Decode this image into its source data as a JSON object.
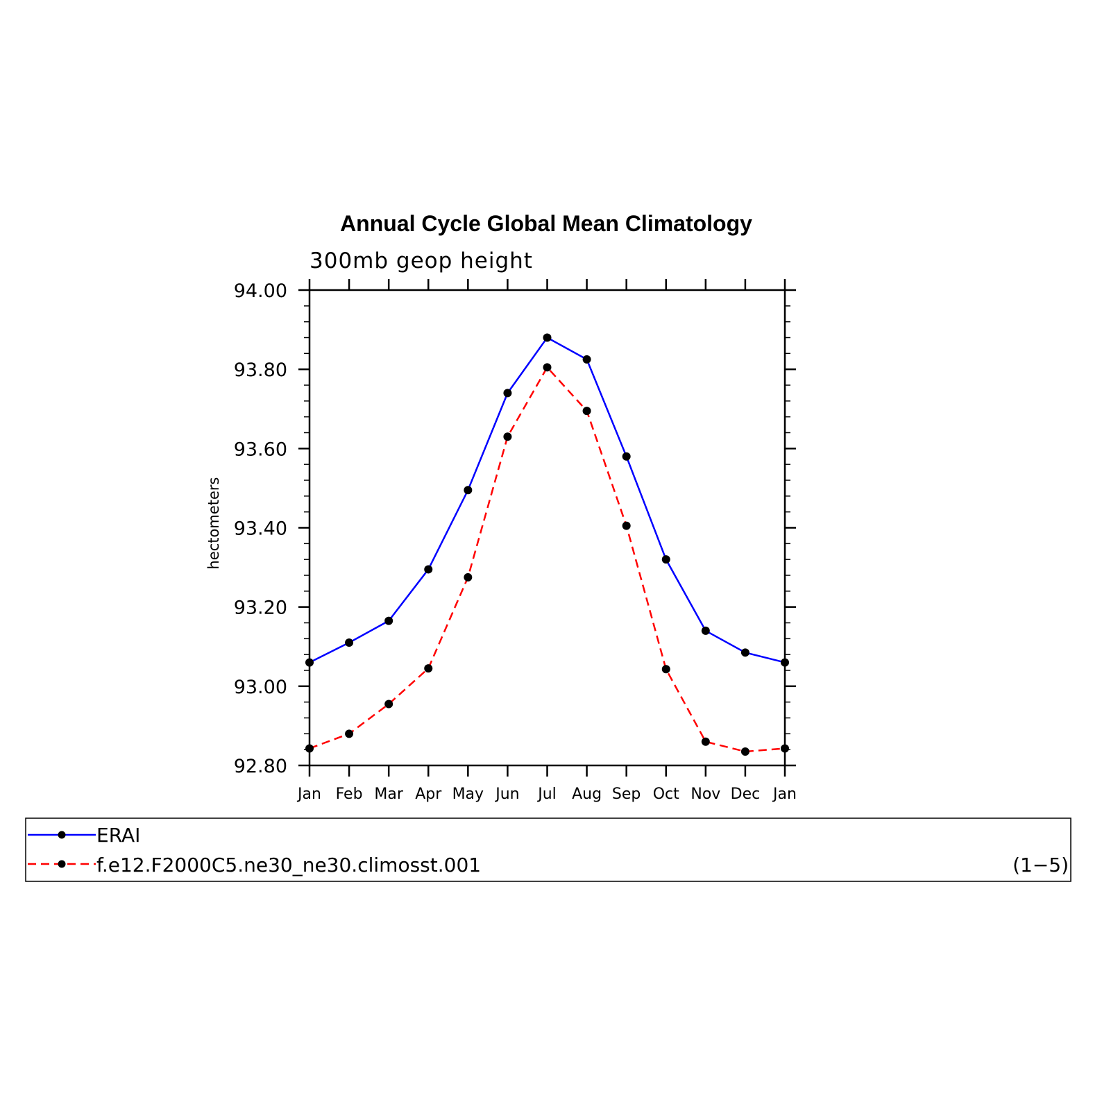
{
  "chart_data": {
    "type": "line",
    "title": "Annual Cycle Global Mean Climatology",
    "subtitle": "300mb geop height",
    "ylabel": "hectometers",
    "xlabel": "",
    "categories": [
      "Jan",
      "Feb",
      "Mar",
      "Apr",
      "May",
      "Jun",
      "Jul",
      "Aug",
      "Sep",
      "Oct",
      "Nov",
      "Dec",
      "Jan"
    ],
    "ylim": [
      92.8,
      94.0
    ],
    "yticks": [
      "92.80",
      "93.00",
      "93.20",
      "93.40",
      "93.60",
      "93.80",
      "94.00"
    ],
    "series": [
      {
        "name": "ERAI",
        "color": "#0000ff",
        "dash": "solid",
        "values": [
          93.06,
          93.11,
          93.165,
          93.295,
          93.495,
          93.74,
          93.88,
          93.825,
          93.58,
          93.32,
          93.14,
          93.085,
          93.06
        ]
      },
      {
        "name": "f.e12.F2000C5.ne30_ne30.climosst.001",
        "color": "#ff0000",
        "dash": "dashed",
        "values": [
          92.843,
          92.88,
          92.955,
          93.045,
          93.275,
          93.63,
          93.805,
          93.695,
          93.405,
          93.043,
          92.86,
          92.835,
          92.843
        ]
      }
    ],
    "legend": {
      "placement": "bottom",
      "panel_id": "(1−5)"
    },
    "grid": false
  }
}
